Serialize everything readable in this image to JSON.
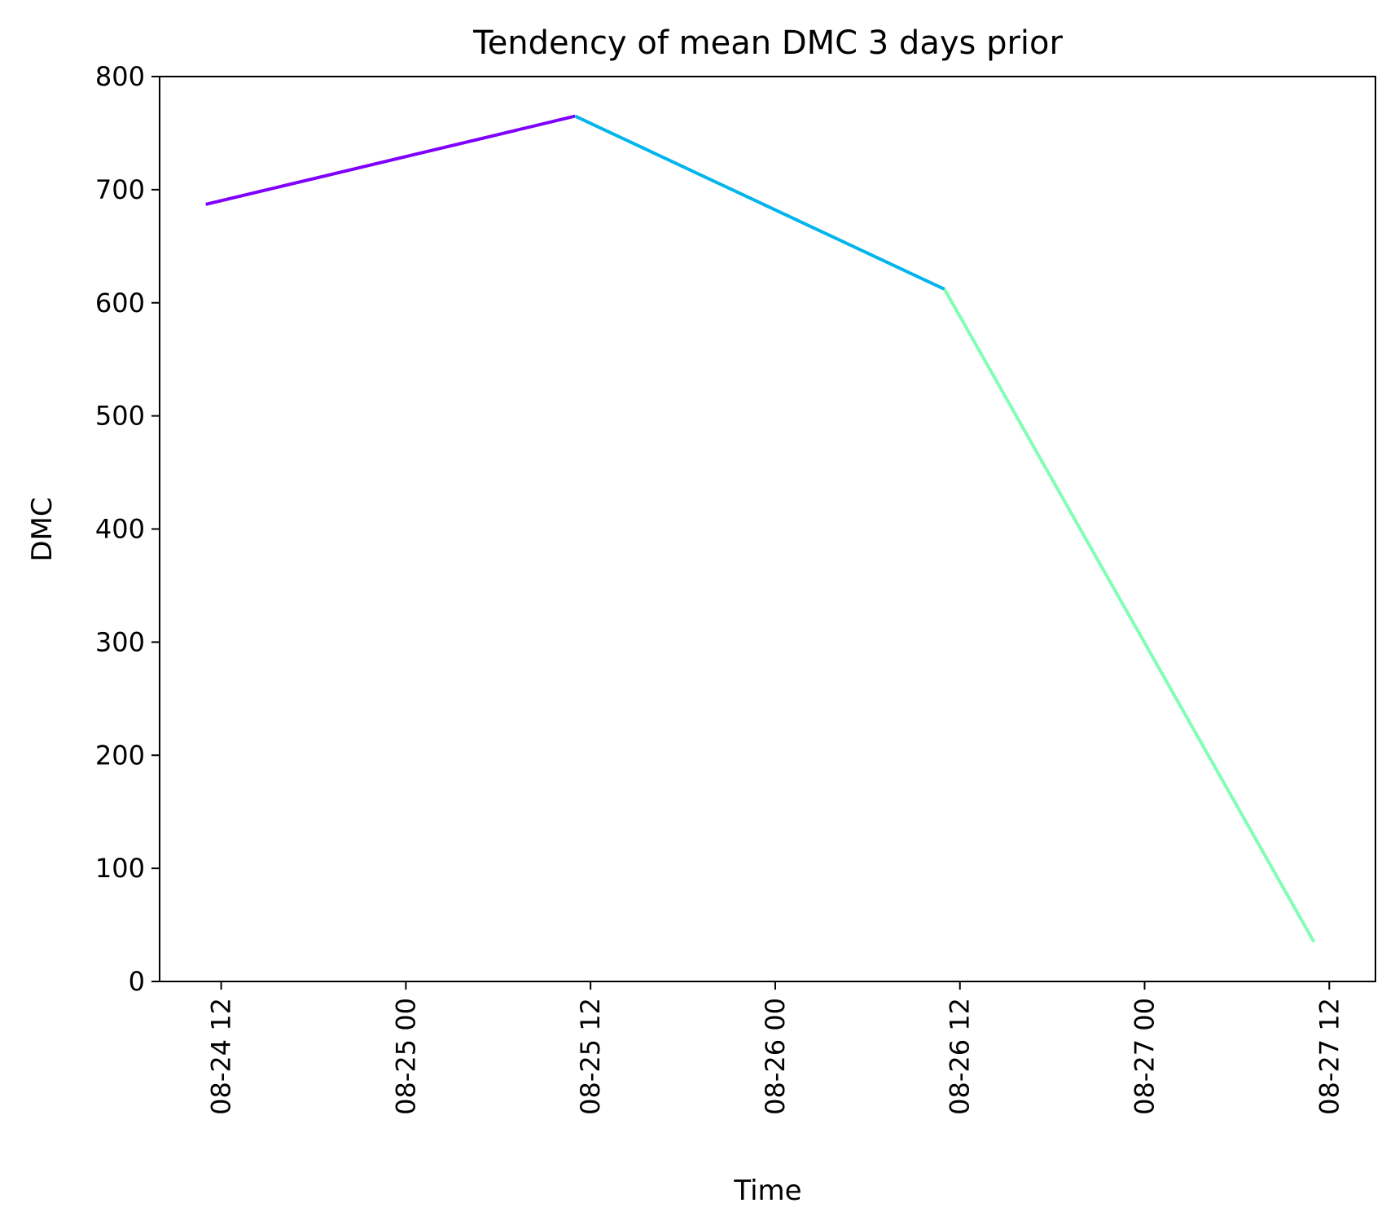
{
  "chart_data": {
    "type": "line",
    "title": "Tendency of mean DMC 3 days prior",
    "xlabel": "Time",
    "ylabel": "DMC",
    "ylim": [
      0,
      800
    ],
    "xlim": [
      "08-24 08",
      "08-27 15"
    ],
    "grid": false,
    "legend": "none",
    "x_ticks": [
      "08-24 12",
      "08-25 00",
      "08-25 12",
      "08-26 00",
      "08-26 12",
      "08-27 00",
      "08-27 12"
    ],
    "y_ticks": [
      "0",
      "100",
      "200",
      "300",
      "400",
      "500",
      "600",
      "700",
      "800"
    ],
    "points": [
      {
        "x": "08-24 11",
        "y": 687
      },
      {
        "x": "08-25 11",
        "y": 765
      },
      {
        "x": "08-26 11",
        "y": 612
      },
      {
        "x": "08-27 11",
        "y": 35
      }
    ],
    "segment_colors": [
      "#8000ff",
      "#00b5eb",
      "#80ffb4"
    ]
  }
}
